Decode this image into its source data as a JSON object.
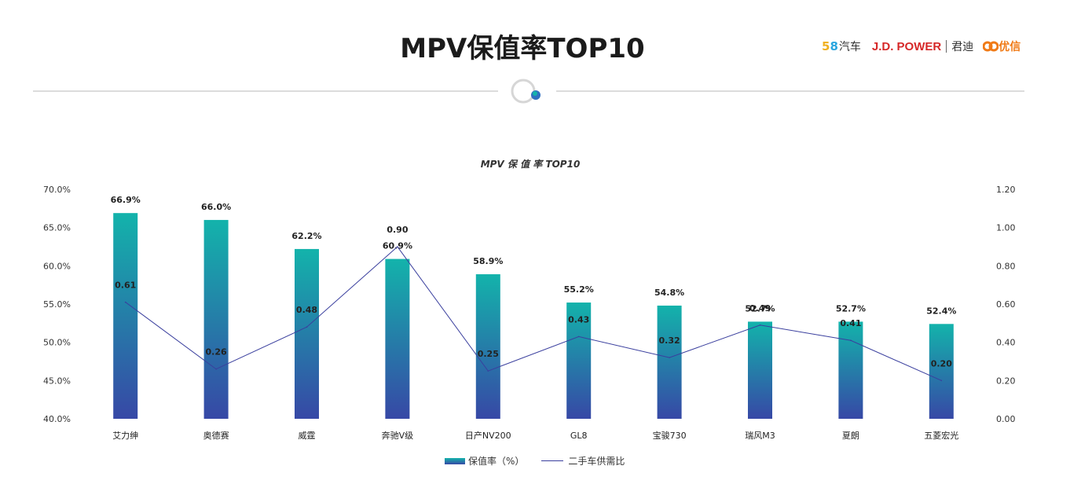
{
  "header": {
    "title": "MPV保值率TOP10",
    "logos": {
      "logo_58": "58",
      "logo_58_five": "5",
      "logo_58_eight": "8",
      "logo_58_text": "汽车",
      "jd_power": "J.D. POWER",
      "jundi": "君迪",
      "youxin": "优信"
    }
  },
  "colors": {
    "bar_top": "#13b3ab",
    "bar_bottom": "#3748a6",
    "line": "#3a3f9e",
    "ornament_dot": "#2f6fc0"
  },
  "chart_data": {
    "type": "bar",
    "title": "MPV 保 值 率 TOP10",
    "categories": [
      "艾力绅",
      "奥德赛",
      "威霆",
      "奔驰V级",
      "日产NV200",
      "GL8",
      "宝骏730",
      "瑞风M3",
      "夏朗",
      "五菱宏光"
    ],
    "series": [
      {
        "name": "保值率（%）",
        "type": "bar",
        "axis": "left",
        "values": [
          66.9,
          66.0,
          62.2,
          60.9,
          58.9,
          55.2,
          54.8,
          52.7,
          52.7,
          52.4
        ],
        "labels": [
          "66.9%",
          "66.0%",
          "62.2%",
          "60.9%",
          "58.9%",
          "55.2%",
          "54.8%",
          "52.7%",
          "52.7%",
          "52.4%"
        ]
      },
      {
        "name": "二手车供需比",
        "type": "line",
        "axis": "right",
        "values": [
          0.61,
          0.26,
          0.48,
          0.9,
          0.25,
          0.43,
          0.32,
          0.49,
          0.41,
          0.2
        ],
        "labels": [
          "0.61",
          "0.26",
          "0.48",
          "0.90",
          "0.25",
          "0.43",
          "0.32",
          "0.49",
          "0.41",
          "0.20"
        ]
      }
    ],
    "y_left": {
      "range": [
        40,
        70
      ],
      "ticks": [
        40,
        45,
        50,
        55,
        60,
        65,
        70
      ],
      "tick_labels": [
        "40.0%",
        "45.0%",
        "50.0%",
        "55.0%",
        "60.0%",
        "65.0%",
        "70.0%"
      ]
    },
    "y_right": {
      "range": [
        0,
        1.2
      ],
      "ticks": [
        0,
        0.2,
        0.4,
        0.6,
        0.8,
        1.0,
        1.2
      ],
      "tick_labels": [
        "0.00",
        "0.20",
        "0.40",
        "0.60",
        "0.80",
        "1.00",
        "1.20"
      ]
    },
    "grid": false,
    "legend_position": "bottom"
  }
}
